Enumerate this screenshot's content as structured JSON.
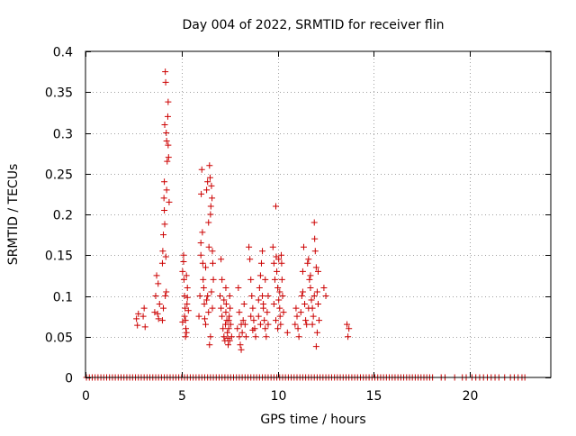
{
  "chart_data": {
    "type": "scatter",
    "title": "Day 004 of 2022, SRMTID for receiver flin",
    "xlabel": "GPS time / hours",
    "ylabel": "SRMTID / TECUs",
    "xlim": [
      0,
      24.2
    ],
    "ylim": [
      0,
      0.4
    ],
    "xticks": [
      0,
      5,
      10,
      15,
      20
    ],
    "xtick_labels": [
      "0",
      "5",
      "10",
      "15",
      "20"
    ],
    "yticks": [
      0,
      0.05,
      0.1,
      0.15,
      0.2,
      0.25,
      0.3,
      0.35,
      0.4
    ],
    "ytick_labels": [
      "0",
      "0.05",
      "0.1",
      "0.15",
      "0.2",
      "0.25",
      "0.3",
      "0.35",
      "0.4"
    ],
    "grid": true,
    "marker": "+",
    "marker_color": "#cc0000",
    "series": [
      {
        "points": [
          [
            2.65,
            0.072
          ],
          [
            2.7,
            0.064
          ],
          [
            2.75,
            0.078
          ],
          [
            3.0,
            0.075
          ],
          [
            3.05,
            0.085
          ],
          [
            3.1,
            0.062
          ],
          [
            3.6,
            0.08
          ],
          [
            3.65,
            0.1
          ],
          [
            3.7,
            0.125
          ],
          [
            3.75,
            0.078
          ],
          [
            3.8,
            0.072
          ],
          [
            3.78,
            0.115
          ],
          [
            3.85,
            0.09
          ],
          [
            4.0,
            0.14
          ],
          [
            4.02,
            0.155
          ],
          [
            4.05,
            0.175
          ],
          [
            4.08,
            0.22
          ],
          [
            4.1,
            0.24
          ],
          [
            4.12,
            0.31
          ],
          [
            4.15,
            0.375
          ],
          [
            4.17,
            0.362
          ],
          [
            4.2,
            0.3
          ],
          [
            4.22,
            0.29
          ],
          [
            4.25,
            0.265
          ],
          [
            4.28,
            0.32
          ],
          [
            4.3,
            0.338
          ],
          [
            4.32,
            0.27
          ],
          [
            4.35,
            0.215
          ],
          [
            4.12,
            0.188
          ],
          [
            4.18,
            0.148
          ],
          [
            4.22,
            0.23
          ],
          [
            4.3,
            0.285
          ],
          [
            4.1,
            0.205
          ],
          [
            4.05,
            0.085
          ],
          [
            4.15,
            0.1
          ],
          [
            4.2,
            0.105
          ],
          [
            4.0,
            0.07
          ],
          [
            5.05,
            0.13
          ],
          [
            5.1,
            0.15
          ],
          [
            5.12,
            0.12
          ],
          [
            5.15,
            0.1
          ],
          [
            5.18,
            0.085
          ],
          [
            5.2,
            0.07
          ],
          [
            5.22,
            0.06
          ],
          [
            5.25,
            0.055
          ],
          [
            5.28,
            0.09
          ],
          [
            5.3,
            0.11
          ],
          [
            5.1,
            0.142
          ],
          [
            5.15,
            0.075
          ],
          [
            5.2,
            0.05
          ],
          [
            5.25,
            0.125
          ],
          [
            5.3,
            0.098
          ],
          [
            5.35,
            0.082
          ],
          [
            5.05,
            0.068
          ],
          [
            5.9,
            0.075
          ],
          [
            5.95,
            0.1
          ],
          [
            6.0,
            0.165
          ],
          [
            6.02,
            0.225
          ],
          [
            6.05,
            0.255
          ],
          [
            6.08,
            0.178
          ],
          [
            6.1,
            0.14
          ],
          [
            6.12,
            0.12
          ],
          [
            6.15,
            0.11
          ],
          [
            6.18,
            0.09
          ],
          [
            6.2,
            0.072
          ],
          [
            6.25,
            0.065
          ],
          [
            6.3,
            0.23
          ],
          [
            6.35,
            0.24
          ],
          [
            6.4,
            0.19
          ],
          [
            6.42,
            0.16
          ],
          [
            6.45,
            0.26
          ],
          [
            6.48,
            0.245
          ],
          [
            6.5,
            0.2
          ],
          [
            6.52,
            0.21
          ],
          [
            6.55,
            0.235
          ],
          [
            6.58,
            0.22
          ],
          [
            6.6,
            0.155
          ],
          [
            6.62,
            0.14
          ],
          [
            6.65,
            0.12
          ],
          [
            6.5,
            0.05
          ],
          [
            6.45,
            0.04
          ],
          [
            6.4,
            0.08
          ],
          [
            6.35,
            0.1
          ],
          [
            6.3,
            0.095
          ],
          [
            6.55,
            0.105
          ],
          [
            6.6,
            0.085
          ],
          [
            6.25,
            0.135
          ],
          [
            6.0,
            0.15
          ],
          [
            7.0,
            0.1
          ],
          [
            7.05,
            0.085
          ],
          [
            7.1,
            0.075
          ],
          [
            7.15,
            0.06
          ],
          [
            7.2,
            0.05
          ],
          [
            7.25,
            0.045
          ],
          [
            7.28,
            0.065
          ],
          [
            7.3,
            0.08
          ],
          [
            7.32,
            0.09
          ],
          [
            7.35,
            0.07
          ],
          [
            7.38,
            0.055
          ],
          [
            7.4,
            0.048
          ],
          [
            7.42,
            0.04
          ],
          [
            7.45,
            0.06
          ],
          [
            7.48,
            0.075
          ],
          [
            7.5,
            0.1
          ],
          [
            7.52,
            0.085
          ],
          [
            7.55,
            0.065
          ],
          [
            7.6,
            0.05
          ],
          [
            7.1,
            0.12
          ],
          [
            7.2,
            0.095
          ],
          [
            7.3,
            0.11
          ],
          [
            7.05,
            0.145
          ],
          [
            7.45,
            0.07
          ],
          [
            7.5,
            0.045
          ],
          [
            7.9,
            0.06
          ],
          [
            8.0,
            0.05
          ],
          [
            8.05,
            0.04
          ],
          [
            8.1,
            0.034
          ],
          [
            8.15,
            0.055
          ],
          [
            8.2,
            0.07
          ],
          [
            8.25,
            0.09
          ],
          [
            8.0,
            0.08
          ],
          [
            8.1,
            0.065
          ],
          [
            7.95,
            0.11
          ],
          [
            8.3,
            0.065
          ],
          [
            8.35,
            0.05
          ],
          [
            8.5,
            0.16
          ],
          [
            8.55,
            0.145
          ],
          [
            8.6,
            0.12
          ],
          [
            8.65,
            0.1
          ],
          [
            8.7,
            0.085
          ],
          [
            8.75,
            0.07
          ],
          [
            8.8,
            0.06
          ],
          [
            8.85,
            0.05
          ],
          [
            8.6,
            0.075
          ],
          [
            8.7,
            0.058
          ],
          [
            9.0,
            0.095
          ],
          [
            9.05,
            0.11
          ],
          [
            9.1,
            0.125
          ],
          [
            9.15,
            0.14
          ],
          [
            9.2,
            0.1
          ],
          [
            9.25,
            0.085
          ],
          [
            9.3,
            0.07
          ],
          [
            9.35,
            0.06
          ],
          [
            9.4,
            0.05
          ],
          [
            9.45,
            0.08
          ],
          [
            9.5,
            0.1
          ],
          [
            9.2,
            0.155
          ],
          [
            9.35,
            0.12
          ],
          [
            9.1,
            0.065
          ],
          [
            9.0,
            0.075
          ],
          [
            9.25,
            0.09
          ],
          [
            9.5,
            0.065
          ],
          [
            9.75,
            0.16
          ],
          [
            9.8,
            0.14
          ],
          [
            9.85,
            0.12
          ],
          [
            9.9,
            0.21
          ],
          [
            9.92,
            0.148
          ],
          [
            9.95,
            0.13
          ],
          [
            10.0,
            0.11
          ],
          [
            10.05,
            0.095
          ],
          [
            10.1,
            0.085
          ],
          [
            10.12,
            0.075
          ],
          [
            10.15,
            0.065
          ],
          [
            10.18,
            0.15
          ],
          [
            10.2,
            0.14
          ],
          [
            10.22,
            0.12
          ],
          [
            10.25,
            0.1
          ],
          [
            10.3,
            0.08
          ],
          [
            9.8,
            0.09
          ],
          [
            9.9,
            0.07
          ],
          [
            10.0,
            0.06
          ],
          [
            10.1,
            0.105
          ],
          [
            10.05,
            0.145
          ],
          [
            10.5,
            0.055
          ],
          [
            10.9,
            0.065
          ],
          [
            11.0,
            0.075
          ],
          [
            11.05,
            0.06
          ],
          [
            11.1,
            0.05
          ],
          [
            10.95,
            0.085
          ],
          [
            11.2,
            0.08
          ],
          [
            11.25,
            0.1
          ],
          [
            11.3,
            0.13
          ],
          [
            11.35,
            0.16
          ],
          [
            11.4,
            0.09
          ],
          [
            11.45,
            0.07
          ],
          [
            11.5,
            0.065
          ],
          [
            11.55,
            0.14
          ],
          [
            11.6,
            0.145
          ],
          [
            11.65,
            0.12
          ],
          [
            11.7,
            0.11
          ],
          [
            11.75,
            0.095
          ],
          [
            11.8,
            0.085
          ],
          [
            11.85,
            0.075
          ],
          [
            11.9,
            0.19
          ],
          [
            11.92,
            0.17
          ],
          [
            11.95,
            0.155
          ],
          [
            12.0,
            0.135
          ],
          [
            12.05,
            0.105
          ],
          [
            12.1,
            0.09
          ],
          [
            12.15,
            0.07
          ],
          [
            12.0,
            0.038
          ],
          [
            12.05,
            0.055
          ],
          [
            11.9,
            0.1
          ],
          [
            11.8,
            0.065
          ],
          [
            11.7,
            0.125
          ],
          [
            12.1,
            0.13
          ],
          [
            11.3,
            0.105
          ],
          [
            11.6,
            0.085
          ],
          [
            12.4,
            0.11
          ],
          [
            12.5,
            0.1
          ],
          [
            13.6,
            0.065
          ],
          [
            13.65,
            0.05
          ],
          [
            13.7,
            0.06
          ]
        ]
      }
    ],
    "zero_points_x": [
      0.05,
      0.2,
      0.35,
      0.5,
      0.65,
      0.8,
      0.95,
      1.1,
      1.25,
      1.4,
      1.55,
      1.7,
      1.85,
      2.0,
      2.15,
      2.3,
      2.45,
      2.6,
      2.75,
      2.9,
      3.05,
      3.2,
      3.35,
      3.5,
      3.65,
      3.8,
      3.95,
      4.1,
      4.25,
      4.4,
      4.55,
      4.7,
      4.85,
      5.0,
      5.15,
      5.3,
      5.45,
      5.6,
      5.75,
      5.9,
      6.05,
      6.2,
      6.35,
      6.5,
      6.65,
      6.8,
      6.95,
      7.1,
      7.25,
      7.4,
      7.55,
      7.7,
      7.85,
      8.0,
      8.15,
      8.3,
      8.45,
      8.6,
      8.75,
      8.9,
      9.05,
      9.2,
      9.35,
      9.5,
      9.65,
      9.8,
      9.95,
      10.1,
      10.25,
      10.4,
      10.55,
      10.7,
      10.85,
      11.0,
      11.15,
      11.3,
      11.45,
      11.6,
      11.75,
      11.9,
      12.05,
      12.2,
      12.35,
      12.5,
      12.65,
      12.8,
      12.95,
      13.1,
      13.25,
      13.4,
      13.55,
      13.7,
      13.85,
      14.0,
      14.15,
      14.3,
      14.45,
      14.6,
      14.75,
      14.9,
      15.05,
      15.2,
      15.35,
      15.5,
      15.65,
      15.8,
      15.95,
      16.1,
      16.25,
      16.4,
      16.55,
      16.7,
      16.85,
      17.0,
      17.15,
      17.3,
      17.45,
      17.6,
      17.75,
      17.9,
      18.05,
      18.5,
      18.7,
      19.2,
      19.6,
      19.8,
      20.1,
      20.3,
      20.5,
      20.7,
      20.9,
      21.1,
      21.3,
      21.5,
      21.8,
      22.1,
      22.3,
      22.5,
      22.7,
      22.85
    ]
  }
}
